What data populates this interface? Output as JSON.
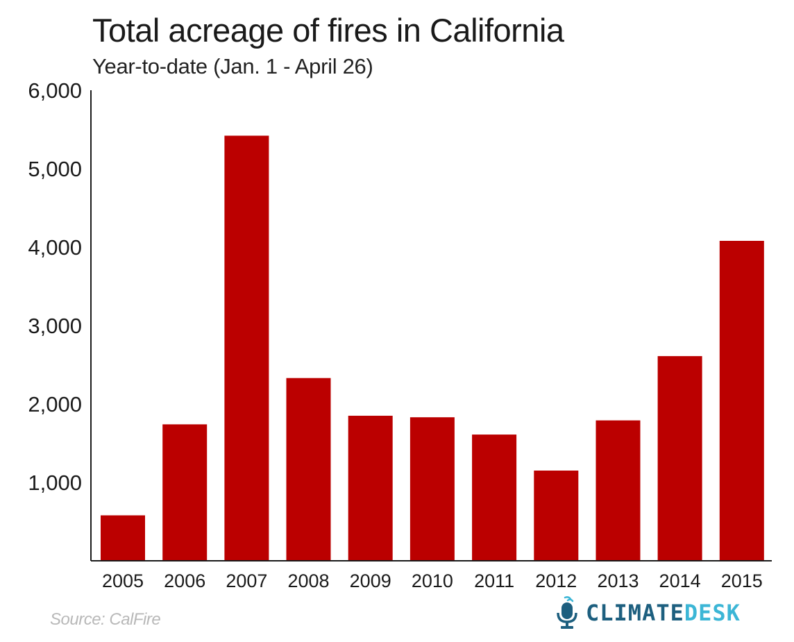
{
  "header": {
    "title": "Total acreage of fires in California",
    "subtitle": "Year-to-date (Jan. 1 - April 26)"
  },
  "footer": {
    "source": "Source: CalFire",
    "logo_word_1": "CLIMATE",
    "logo_word_2": "DESK",
    "logo_icon": "microphone-icon"
  },
  "colors": {
    "bar": "#bb0000",
    "axis": "#1a1a1a",
    "logo_primary": "#1d5f7f",
    "logo_secondary": "#3cb6d6",
    "source_text": "#b8b8b8"
  },
  "chart_data": {
    "type": "bar",
    "title": "Total acreage of fires in California",
    "subtitle": "Year-to-date (Jan. 1 - April 26)",
    "xlabel": "",
    "ylabel": "",
    "categories": [
      "2005",
      "2006",
      "2007",
      "2008",
      "2009",
      "2010",
      "2011",
      "2012",
      "2013",
      "2014",
      "2015"
    ],
    "values": [
      580,
      1740,
      5420,
      2330,
      1850,
      1830,
      1610,
      1150,
      1790,
      2610,
      4080
    ],
    "ylim": [
      0,
      6000
    ],
    "yticks": [
      1000,
      2000,
      3000,
      4000,
      5000,
      6000
    ],
    "ytick_labels": [
      "1,000",
      "2,000",
      "3,000",
      "4,000",
      "5,000",
      "6,000"
    ],
    "grid": false,
    "legend": "none"
  }
}
